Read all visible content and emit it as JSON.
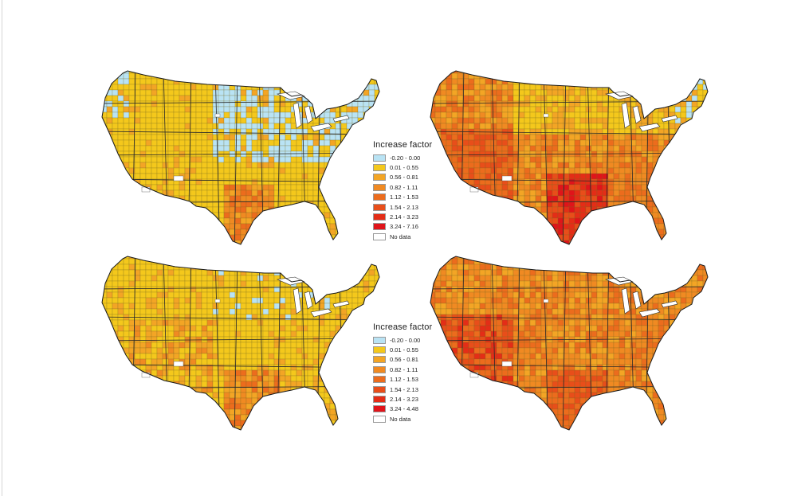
{
  "figure": {
    "maps": [
      {
        "id": "map-top-left",
        "scheme": "lowTL"
      },
      {
        "id": "map-top-right",
        "scheme": "highTR"
      },
      {
        "id": "map-bottom-left",
        "scheme": "lowBL"
      },
      {
        "id": "map-bottom-right",
        "scheme": "highBR"
      }
    ],
    "legends": [
      {
        "title": "Increase factor",
        "items": [
          {
            "label": "-0.20 - 0.00",
            "color": "#b9e3f4"
          },
          {
            "label": "0.01 - 0.55",
            "color": "#f4c81c"
          },
          {
            "label": "0.56 - 0.81",
            "color": "#f3a525"
          },
          {
            "label": "0.82 - 1.11",
            "color": "#f08a22"
          },
          {
            "label": "1.12 - 1.53",
            "color": "#ec6c1d"
          },
          {
            "label": "1.54 - 2.13",
            "color": "#e84e1a"
          },
          {
            "label": "2.14 - 3.23",
            "color": "#e42d17"
          },
          {
            "label": "3.24 - 7.16",
            "color": "#e0141a"
          },
          {
            "label": "No data",
            "color": "#ffffff"
          }
        ]
      },
      {
        "title": "Increase factor",
        "items": [
          {
            "label": "-0.20 - 0.00",
            "color": "#b9e3f4"
          },
          {
            "label": "0.01 - 0.55",
            "color": "#f4c81c"
          },
          {
            "label": "0.56 - 0.81",
            "color": "#f3a525"
          },
          {
            "label": "0.82 - 1.11",
            "color": "#f08a22"
          },
          {
            "label": "1.12 - 1.53",
            "color": "#ec6c1d"
          },
          {
            "label": "1.54 - 2.13",
            "color": "#e84e1a"
          },
          {
            "label": "2.14 - 3.23",
            "color": "#e42d17"
          },
          {
            "label": "3.24 - 4.48",
            "color": "#e0141a"
          },
          {
            "label": "No data",
            "color": "#ffffff"
          }
        ]
      }
    ]
  }
}
